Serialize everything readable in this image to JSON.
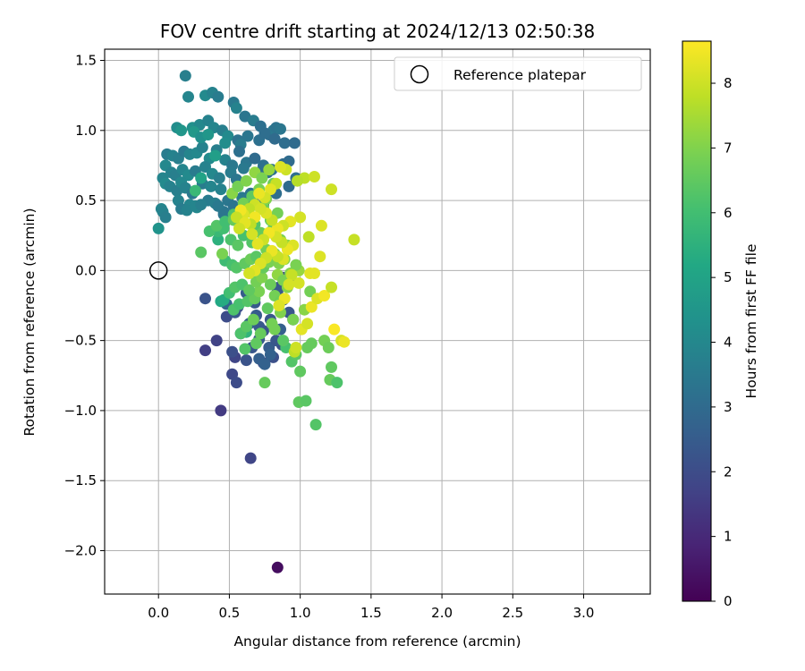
{
  "chart_data": {
    "type": "scatter",
    "title": "FOV centre drift starting at 2024/12/13 02:50:38",
    "xlabel": "Angular distance from reference (arcmin)",
    "ylabel": "Rotation from reference (arcmin)",
    "xlim": [
      -0.38,
      3.47
    ],
    "ylim": [
      -2.31,
      1.58
    ],
    "xticks": [
      0.0,
      0.5,
      1.0,
      1.5,
      2.0,
      2.5,
      3.0
    ],
    "xtick_labels": [
      "0.0",
      "0.5",
      "1.0",
      "1.5",
      "2.0",
      "2.5",
      "3.0"
    ],
    "yticks": [
      -2.0,
      -1.5,
      -1.0,
      -0.5,
      0.0,
      0.5,
      1.0,
      1.5
    ],
    "ytick_labels": [
      "−2.0",
      "−1.5",
      "−1.0",
      "−0.5",
      "0.0",
      "0.5",
      "1.0",
      "1.5"
    ],
    "grid": true,
    "legend": {
      "position": "top-right",
      "entries": [
        "Reference platepar"
      ]
    },
    "reference_marker": {
      "x": 0.0,
      "y": 0.0,
      "label": "Reference platepar"
    },
    "colorbar": {
      "label": "Hours from first FF file",
      "colormap": "viridis",
      "range": [
        0,
        8.65
      ],
      "ticks": [
        0,
        1,
        2,
        3,
        4,
        5,
        6,
        7,
        8
      ],
      "tick_labels": [
        "0",
        "1",
        "2",
        "3",
        "4",
        "5",
        "6",
        "7",
        "8"
      ]
    },
    "series": [
      {
        "x": [
          0.84
        ],
        "y": [
          -2.12
        ],
        "c": [
          0.3
        ]
      },
      {
        "x": [
          0.65,
          0.44,
          0.33,
          0.41,
          0.54,
          0.52,
          0.55,
          0.52,
          0.62,
          0.66,
          0.71,
          0.74,
          0.87,
          0.92,
          0.95,
          0.48,
          0.33,
          0.58,
          0.71,
          0.79,
          0.81,
          0.74,
          0.62,
          0.68,
          0.85,
          0.88,
          0.71,
          0.78,
          0.88,
          0.54,
          0.64,
          0.75,
          0.86,
          0.83,
          0.69,
          0.56,
          0.48,
          0.84,
          0.79,
          0.92
        ],
        "y": [
          -1.34,
          -1.0,
          -0.57,
          -0.5,
          -0.62,
          -0.74,
          -0.8,
          -0.58,
          -0.64,
          -0.55,
          -0.49,
          -0.43,
          -0.53,
          -0.3,
          -0.35,
          -0.33,
          -0.2,
          -0.45,
          -0.4,
          -0.35,
          -0.62,
          -0.66,
          -0.16,
          -0.23,
          -0.12,
          -0.21,
          -0.63,
          -0.55,
          -0.05,
          -0.3,
          -0.38,
          -0.67,
          -0.42,
          -0.5,
          -0.32,
          -0.26,
          -0.24,
          -0.15,
          -0.6,
          -0.09
        ],
        "c": [
          1.8,
          1.5,
          1.6,
          1.7,
          1.8,
          1.9,
          2.0,
          2.1,
          2.2,
          2.3,
          2.4,
          2.2,
          2.1,
          2.3,
          1.9,
          2.0,
          2.2,
          2.5,
          2.4,
          2.3,
          2.1,
          1.8,
          2.5,
          2.4,
          2.3,
          2.2,
          2.6,
          2.5,
          2.0,
          2.4,
          2.6,
          2.7,
          2.6,
          2.3,
          2.5,
          2.1,
          2.8,
          2.4,
          2.7,
          2.3
        ]
      },
      {
        "x": [
          0.19,
          0.21,
          0.33,
          0.38,
          0.42,
          0.53,
          0.55,
          0.61,
          0.67,
          0.72,
          0.78,
          0.81,
          0.83,
          0.86,
          0.89,
          0.96,
          0.13,
          0.16,
          0.24,
          0.29,
          0.35,
          0.39,
          0.45,
          0.49,
          0.56,
          0.58,
          0.63,
          0.71,
          0.75,
          0.82,
          0.92,
          0.06,
          0.1,
          0.14,
          0.18,
          0.22,
          0.27,
          0.31,
          0.36,
          0.41,
          0.47,
          0.52,
          0.57,
          0.62,
          0.68,
          0.74,
          0.77,
          0.88,
          0.97,
          0.05,
          0.09,
          0.12,
          0.17,
          0.21,
          0.26,
          0.33,
          0.38,
          0.43,
          0.51,
          0.55,
          0.6,
          0.71,
          0.8,
          0.92,
          0.03,
          0.05,
          0.08,
          0.13,
          0.16,
          0.19,
          0.24,
          0.31,
          0.37,
          0.44,
          0.49,
          0.59,
          0.65,
          0.83,
          0.14,
          0.22,
          0.27,
          0.35,
          0.4,
          0.46,
          0.53,
          0.61,
          0.67,
          0.02,
          0.03,
          0.05,
          0.16,
          0.2,
          0.26,
          0.3,
          0.42,
          0.46,
          0.57,
          0.64,
          0.74,
          0.25,
          0.3,
          0.35,
          0.4,
          0.47
        ],
        "y": [
          1.39,
          1.24,
          1.25,
          1.27,
          1.24,
          1.2,
          1.16,
          1.1,
          1.07,
          1.03,
          0.97,
          1.0,
          1.02,
          1.01,
          0.91,
          0.91,
          1.02,
          1.0,
          1.02,
          1.04,
          1.07,
          1.02,
          1.0,
          0.96,
          0.93,
          0.9,
          0.96,
          0.93,
          0.98,
          0.94,
          0.78,
          0.83,
          0.82,
          0.8,
          0.85,
          0.83,
          0.84,
          0.88,
          0.8,
          0.86,
          0.79,
          0.75,
          0.85,
          0.77,
          0.8,
          0.75,
          0.7,
          0.76,
          0.66,
          0.75,
          0.7,
          0.68,
          0.72,
          0.68,
          0.71,
          0.74,
          0.69,
          0.66,
          0.7,
          0.65,
          0.73,
          0.7,
          0.72,
          0.6,
          0.66,
          0.62,
          0.6,
          0.57,
          0.63,
          0.59,
          0.55,
          0.62,
          0.6,
          0.58,
          0.5,
          0.52,
          0.55,
          0.55,
          0.5,
          0.47,
          0.45,
          0.5,
          0.48,
          0.42,
          0.46,
          0.44,
          0.49,
          0.44,
          0.42,
          0.38,
          0.44,
          0.43,
          0.46,
          0.47,
          0.46,
          0.4,
          0.42,
          0.5,
          0.47,
          0.99,
          0.95,
          0.97,
          0.82,
          0.91
        ],
        "c": [
          3.7,
          3.9,
          4.1,
          3.8,
          3.6,
          3.5,
          3.8,
          3.4,
          3.6,
          3.2,
          3.1,
          3.5,
          3.3,
          3.4,
          3.1,
          3.0,
          4.2,
          4.5,
          4.3,
          4.0,
          3.8,
          3.9,
          3.7,
          4.1,
          3.3,
          3.6,
          3.4,
          3.2,
          3.1,
          3.0,
          3.0,
          3.6,
          3.8,
          3.7,
          3.5,
          3.9,
          4.0,
          3.8,
          4.1,
          3.7,
          3.8,
          3.5,
          3.2,
          3.4,
          3.0,
          3.2,
          3.1,
          3.0,
          3.1,
          4.0,
          3.8,
          3.7,
          3.9,
          4.1,
          3.6,
          3.8,
          4.0,
          3.7,
          3.6,
          3.4,
          3.5,
          3.1,
          3.2,
          3.0,
          3.9,
          4.1,
          3.8,
          3.7,
          4.0,
          3.8,
          3.5,
          3.6,
          3.9,
          3.8,
          3.4,
          3.5,
          3.3,
          3.1,
          3.8,
          3.9,
          4.0,
          3.6,
          3.7,
          3.4,
          3.3,
          3.2,
          3.0,
          3.9,
          3.8,
          3.7,
          3.6,
          3.8,
          3.9,
          3.7,
          3.5,
          3.4,
          3.3,
          3.1,
          3.0,
          4.6,
          4.3,
          4.5,
          4.8,
          4.2
        ]
      },
      {
        "x": [
          0.3,
          0.0,
          0.44,
          0.46,
          0.42,
          0.26,
          0.62,
          0.56
        ],
        "y": [
          0.66,
          0.3,
          -0.22,
          -0.21,
          0.22,
          0.57,
          -0.44,
          0.6
        ],
        "c": [
          5.0,
          4.4,
          5.2,
          5.3,
          5.5,
          5.8,
          5.6,
          5.7
        ]
      },
      {
        "x": [
          1.11,
          0.99,
          1.04,
          1.21,
          1.26,
          1.0,
          0.94,
          1.05,
          0.9,
          0.97,
          0.75,
          0.69,
          0.61,
          0.82,
          0.88,
          0.58,
          0.62,
          0.67,
          0.72,
          0.8,
          0.86,
          0.95,
          1.03,
          1.08,
          1.17,
          1.2,
          1.22,
          0.53,
          0.57,
          0.63,
          0.68,
          0.71,
          0.77,
          0.82,
          0.86,
          0.91,
          0.5,
          0.54,
          0.59,
          0.64,
          0.69,
          0.73,
          0.79,
          0.84,
          0.88,
          0.93,
          0.99,
          1.07,
          0.47,
          0.52,
          0.55,
          0.61,
          0.65,
          0.69,
          0.74,
          0.78,
          0.82,
          0.85,
          0.89,
          0.97,
          0.42,
          0.46,
          0.51,
          0.56,
          0.6,
          0.66,
          0.72,
          0.76,
          0.81,
          0.86,
          0.91,
          0.3,
          0.36,
          0.41,
          0.47,
          0.53,
          0.58,
          0.63,
          0.68,
          0.74,
          0.79,
          0.84,
          0.45,
          0.53,
          0.6,
          0.66,
          0.71,
          0.76,
          0.81,
          0.52,
          0.56,
          0.62,
          0.68,
          0.73,
          0.78
        ],
        "y": [
          -1.1,
          -0.94,
          -0.93,
          -0.78,
          -0.8,
          -0.72,
          -0.65,
          -0.55,
          -0.55,
          -0.6,
          -0.8,
          -0.52,
          -0.56,
          -0.42,
          -0.5,
          -0.45,
          -0.4,
          -0.35,
          -0.45,
          -0.38,
          -0.3,
          -0.35,
          -0.28,
          -0.52,
          -0.5,
          -0.55,
          -0.69,
          -0.28,
          -0.24,
          -0.22,
          -0.2,
          -0.15,
          -0.27,
          -0.18,
          -0.22,
          -0.12,
          -0.16,
          -0.12,
          -0.1,
          -0.14,
          -0.08,
          -0.05,
          -0.1,
          -0.03,
          -0.07,
          -0.02,
          0.0,
          -0.15,
          0.07,
          0.04,
          0.02,
          0.05,
          0.08,
          0.1,
          0.02,
          0.06,
          0.12,
          0.05,
          0.08,
          0.04,
          0.28,
          0.3,
          0.22,
          0.18,
          0.25,
          0.2,
          0.27,
          0.15,
          0.3,
          0.22,
          0.18,
          0.13,
          0.28,
          0.32,
          0.35,
          0.4,
          0.38,
          0.42,
          0.33,
          0.45,
          0.36,
          0.41,
          0.12,
          0.36,
          0.48,
          0.53,
          0.58,
          0.51,
          0.62,
          0.55,
          0.6,
          0.64,
          0.7,
          0.66,
          0.72
        ],
        "c": [
          6.3,
          6.5,
          6.4,
          6.6,
          6.2,
          6.5,
          6.3,
          6.6,
          6.1,
          6.4,
          6.6,
          6.5,
          6.3,
          6.8,
          6.4,
          6.2,
          6.4,
          6.7,
          6.6,
          6.8,
          7.0,
          6.9,
          7.1,
          6.6,
          6.8,
          6.7,
          6.5,
          6.2,
          6.1,
          6.3,
          6.6,
          6.9,
          6.5,
          6.8,
          6.7,
          7.1,
          6.0,
          6.3,
          6.2,
          6.5,
          6.8,
          7.0,
          6.7,
          7.2,
          6.9,
          7.0,
          7.3,
          6.8,
          5.9,
          6.1,
          6.3,
          6.5,
          6.7,
          6.4,
          6.6,
          6.9,
          6.8,
          7.0,
          7.1,
          6.9,
          5.8,
          6.0,
          6.2,
          6.4,
          6.1,
          6.3,
          6.6,
          6.8,
          6.5,
          6.9,
          7.1,
          6.4,
          6.1,
          6.3,
          6.0,
          6.2,
          6.4,
          6.6,
          6.3,
          6.7,
          6.5,
          6.8,
          6.9,
          6.6,
          6.8,
          6.5,
          6.9,
          7.0,
          6.7,
          7.1,
          6.8,
          7.0,
          7.2,
          6.9,
          7.3
        ]
      },
      {
        "x": [
          0.96,
          0.97,
          1.01,
          1.05,
          1.08,
          1.12,
          1.17,
          1.22,
          1.24,
          1.29,
          1.31,
          1.38,
          1.22,
          1.14,
          1.06,
          1.07,
          0.99,
          0.94,
          1.03,
          0.98,
          0.9,
          0.86,
          0.83,
          0.79,
          0.75,
          0.71,
          0.68,
          0.64,
          0.6,
          0.58,
          0.55,
          1.0,
          0.93,
          0.88,
          0.84,
          0.8,
          0.76,
          0.72,
          0.68,
          0.65,
          0.61,
          0.57,
          0.95,
          0.91,
          0.87,
          0.83,
          0.78,
          0.74,
          0.7,
          0.66,
          0.88,
          0.84,
          0.8,
          0.76,
          0.72,
          0.68,
          0.64,
          1.1,
          1.15,
          1.1,
          0.92,
          0.89,
          0.85
        ],
        "y": [
          -0.58,
          -0.55,
          -0.42,
          -0.38,
          -0.26,
          -0.2,
          -0.18,
          -0.12,
          -0.42,
          -0.5,
          -0.51,
          0.22,
          0.58,
          0.1,
          0.24,
          -0.02,
          -0.09,
          -0.03,
          0.66,
          0.64,
          0.72,
          0.74,
          0.62,
          0.58,
          0.52,
          0.55,
          0.47,
          0.44,
          0.4,
          0.43,
          0.38,
          0.38,
          0.35,
          0.32,
          0.3,
          0.36,
          0.41,
          0.44,
          0.38,
          0.33,
          0.34,
          0.3,
          0.18,
          0.15,
          0.2,
          0.24,
          0.27,
          0.22,
          0.19,
          0.26,
          0.08,
          0.1,
          0.14,
          0.09,
          0.05,
          0.0,
          -0.02,
          0.67,
          0.32,
          -0.02,
          -0.1,
          -0.2,
          -0.25
        ],
        "c": [
          7.8,
          8.0,
          8.3,
          8.1,
          8.4,
          8.2,
          8.5,
          7.9,
          8.6,
          8.1,
          8.4,
          7.9,
          8.0,
          8.2,
          7.8,
          8.3,
          8.1,
          7.9,
          7.8,
          7.7,
          8.0,
          8.2,
          7.9,
          8.3,
          8.1,
          8.4,
          8.0,
          7.8,
          8.2,
          8.5,
          7.9,
          8.1,
          8.3,
          8.0,
          8.4,
          7.9,
          8.2,
          8.1,
          8.5,
          7.8,
          8.3,
          8.0,
          8.2,
          8.4,
          7.9,
          8.1,
          8.5,
          8.0,
          8.3,
          8.1,
          8.2,
          7.9,
          8.4,
          8.0,
          8.2,
          8.3,
          8.1,
          8.0,
          8.2,
          8.3,
          8.1,
          8.4,
          8.2
        ]
      }
    ]
  }
}
